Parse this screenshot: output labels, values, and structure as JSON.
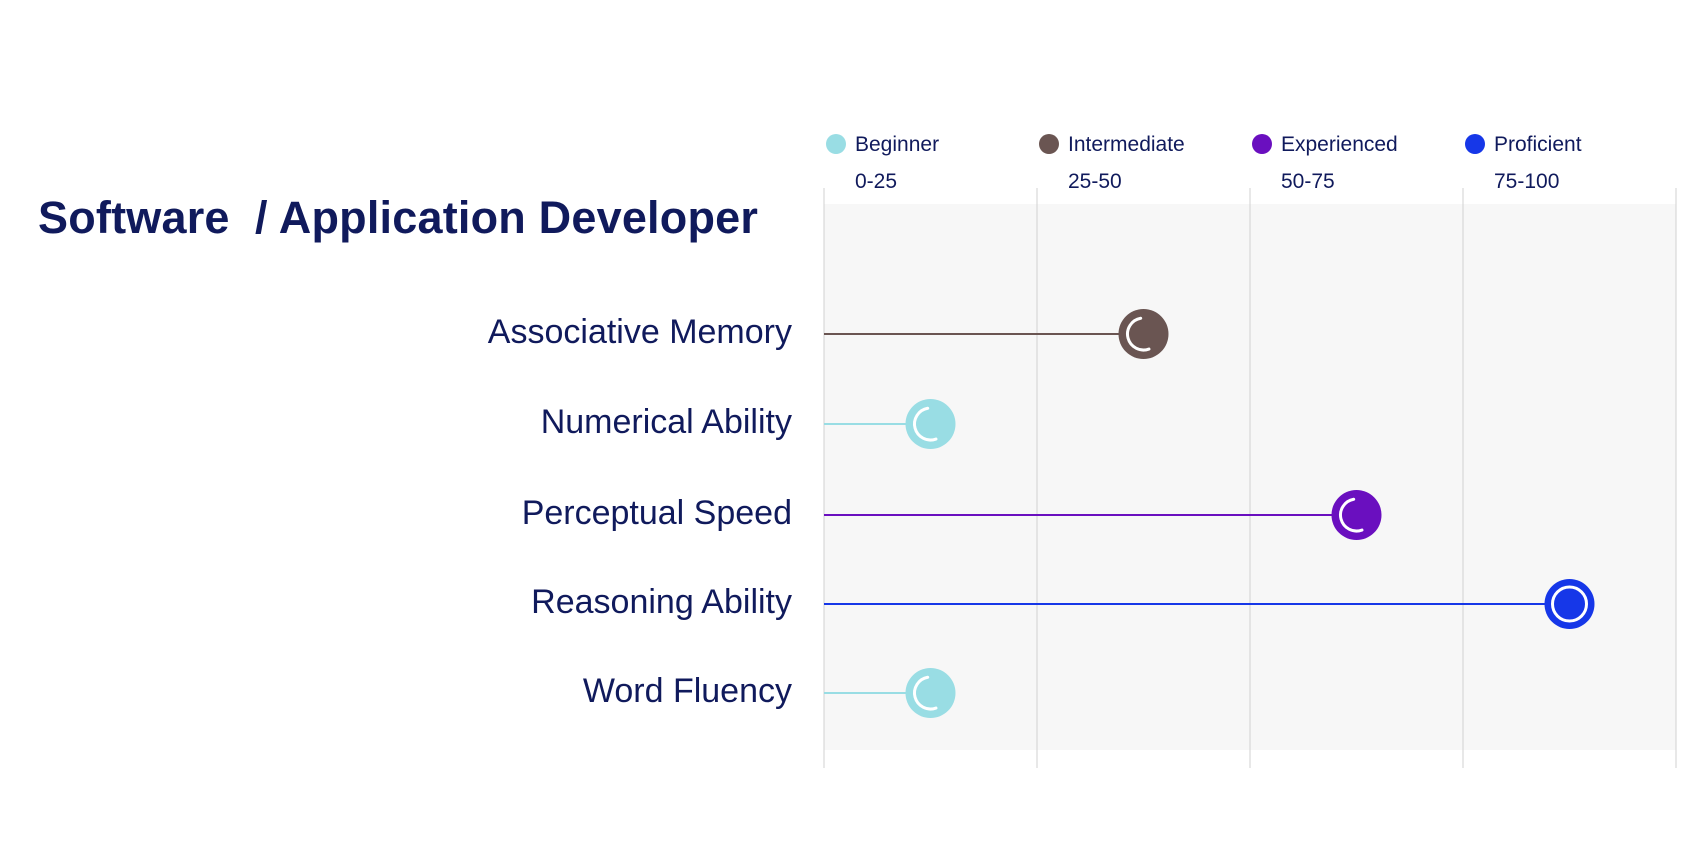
{
  "title": "Software  / Application Developer",
  "chart_data": {
    "type": "lollipop",
    "xlim": [
      0,
      100
    ],
    "grid": true,
    "legend_position": "top",
    "bands": [
      {
        "name": "Beginner",
        "range": "0-25",
        "color": "#99dde4"
      },
      {
        "name": "Intermediate",
        "range": "25-50",
        "color": "#6a5552"
      },
      {
        "name": "Experienced",
        "range": "50-75",
        "color": "#6a0fbf"
      },
      {
        "name": "Proficient",
        "range": "75-100",
        "color": "#1637e8"
      }
    ],
    "categories": [
      "Associative Memory",
      "Numerical Ability",
      "Perceptual Speed",
      "Reasoning Ability",
      "Word Fluency"
    ],
    "values": [
      37.5,
      12.5,
      62.5,
      87.5,
      12.5
    ],
    "level": [
      "Intermediate",
      "Beginner",
      "Experienced",
      "Proficient",
      "Beginner"
    ]
  }
}
